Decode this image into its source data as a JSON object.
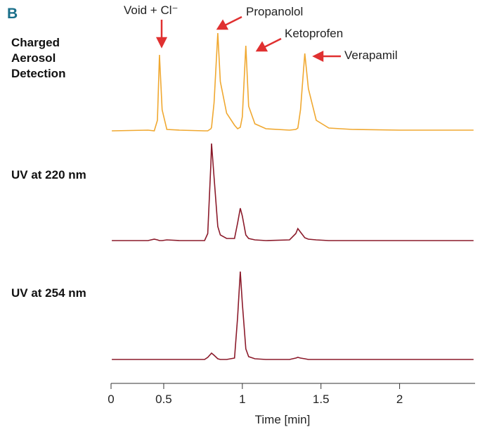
{
  "chart_data": {
    "type": "line",
    "panel": "B",
    "annotations": [
      "Void + Cl⁻",
      "Propanolol",
      "Ketoprofen",
      "Verapamil"
    ],
    "x_label": "Time [min]",
    "xlim": [
      0.165,
      2.48
    ],
    "xticks": [
      {
        "value": 0.165,
        "label": "0"
      },
      0.5,
      1,
      1.5,
      2
    ],
    "ylim": [
      0,
      150
    ],
    "x": [
      0.17,
      0.4,
      0.44,
      0.46,
      0.473,
      0.49,
      0.52,
      0.6,
      0.76,
      0.78,
      0.8,
      0.804,
      0.82,
      0.844,
      0.86,
      0.9,
      0.95,
      0.97,
      0.987,
      1.0,
      1.022,
      1.04,
      1.08,
      1.15,
      1.3,
      1.34,
      1.353,
      1.37,
      1.397,
      1.42,
      1.47,
      1.55,
      1.7,
      2.0,
      2.3,
      2.47
    ],
    "series": [
      {
        "name": "Charged Aerosol Detection",
        "color": "#f0a830",
        "values": [
          0,
          1,
          0,
          15,
          108,
          30,
          2,
          1,
          0,
          0,
          3,
          5,
          40,
          139,
          70,
          25,
          8,
          3,
          5,
          20,
          121,
          35,
          10,
          3,
          1,
          2,
          4,
          30,
          110,
          60,
          15,
          4,
          2,
          1,
          1,
          1
        ]
      },
      {
        "name": "UV at 220 nm",
        "color": "#8b1a2a",
        "values": [
          0,
          0,
          2,
          1,
          0,
          0,
          1,
          0,
          0,
          10,
          110,
          138,
          90,
          20,
          8,
          3,
          3,
          25,
          46,
          35,
          8,
          3,
          1,
          0,
          1,
          10,
          17,
          12,
          4,
          2,
          1,
          0,
          0,
          0,
          0,
          0
        ]
      },
      {
        "name": "UV at 254 nm",
        "color": "#8b1a2a",
        "values": [
          0,
          0,
          0,
          0,
          0,
          0,
          0,
          0,
          0,
          3,
          8,
          9,
          6,
          1,
          0,
          0,
          2,
          60,
          125,
          80,
          15,
          4,
          1,
          0,
          0,
          2,
          3,
          2,
          1,
          0,
          0,
          0,
          0,
          0,
          0,
          0
        ]
      }
    ]
  }
}
